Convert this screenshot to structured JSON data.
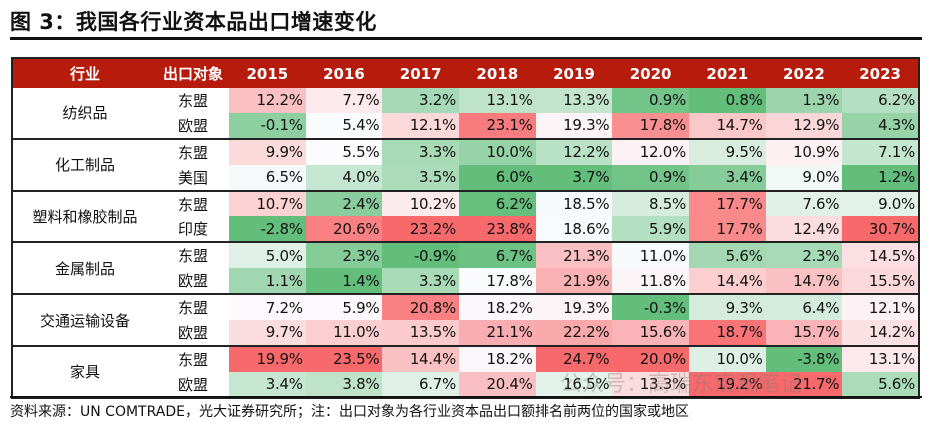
{
  "title": "图 3：我国各行业资本品出口增速变化",
  "table": {
    "headers": [
      "行业",
      "出口对象",
      "2015",
      "2016",
      "2017",
      "2018",
      "2019",
      "2020",
      "2021",
      "2022",
      "2023"
    ],
    "groups": [
      {
        "industry": "纺织品",
        "rows": [
          {
            "target": "东盟",
            "values": [
              "12.2%",
              "7.7%",
              "3.2%",
              "13.1%",
              "13.3%",
              "0.9%",
              "0.8%",
              "1.3%",
              "6.2%"
            ]
          },
          {
            "target": "欧盟",
            "values": [
              "-0.1%",
              "5.4%",
              "12.1%",
              "23.1%",
              "19.3%",
              "17.8%",
              "14.7%",
              "12.9%",
              "4.3%"
            ]
          }
        ]
      },
      {
        "industry": "化工制品",
        "rows": [
          {
            "target": "东盟",
            "values": [
              "9.9%",
              "5.5%",
              "3.3%",
              "10.0%",
              "12.2%",
              "12.0%",
              "9.5%",
              "10.9%",
              "7.1%"
            ]
          },
          {
            "target": "美国",
            "values": [
              "6.5%",
              "4.0%",
              "3.5%",
              "6.0%",
              "3.7%",
              "0.9%",
              "3.4%",
              "9.0%",
              "1.2%"
            ]
          }
        ]
      },
      {
        "industry": "塑料和橡胶制品",
        "rows": [
          {
            "target": "东盟",
            "values": [
              "10.7%",
              "2.4%",
              "10.2%",
              "6.2%",
              "18.5%",
              "8.5%",
              "17.7%",
              "7.6%",
              "9.0%"
            ]
          },
          {
            "target": "印度",
            "values": [
              "-2.8%",
              "20.6%",
              "23.2%",
              "23.8%",
              "18.6%",
              "5.9%",
              "17.7%",
              "12.4%",
              "30.7%"
            ]
          }
        ]
      },
      {
        "industry": "金属制品",
        "rows": [
          {
            "target": "东盟",
            "values": [
              "5.0%",
              "2.3%",
              "-0.9%",
              "6.7%",
              "21.3%",
              "11.0%",
              "5.6%",
              "2.3%",
              "14.5%"
            ]
          },
          {
            "target": "欧盟",
            "values": [
              "1.1%",
              "1.4%",
              "3.3%",
              "17.8%",
              "21.9%",
              "11.8%",
              "14.4%",
              "14.7%",
              "15.5%"
            ]
          }
        ]
      },
      {
        "industry": "交通运输设备",
        "rows": [
          {
            "target": "东盟",
            "values": [
              "7.2%",
              "5.9%",
              "20.8%",
              "18.2%",
              "19.3%",
              "-0.3%",
              "9.3%",
              "6.4%",
              "12.1%"
            ]
          },
          {
            "target": "欧盟",
            "values": [
              "9.7%",
              "11.0%",
              "13.5%",
              "21.1%",
              "22.2%",
              "15.6%",
              "18.7%",
              "15.7%",
              "14.2%"
            ]
          }
        ]
      },
      {
        "industry": "家具",
        "rows": [
          {
            "target": "东盟",
            "values": [
              "19.9%",
              "23.5%",
              "14.4%",
              "18.2%",
              "24.7%",
              "20.0%",
              "10.0%",
              "-3.8%",
              "13.1%"
            ]
          },
          {
            "target": "欧盟",
            "values": [
              "3.4%",
              "3.8%",
              "6.7%",
              "20.4%",
              "16.5%",
              "13.3%",
              "19.2%",
              "21.7%",
              "5.6%"
            ]
          }
        ]
      }
    ],
    "colors": {
      "header_bg": "#B71B0C",
      "low": "#63BE7B",
      "mid": "#FCFCFF",
      "high": "#F8696B"
    }
  },
  "source": "资料来源：UN COMTRADE，光大证券研究所；注：出口对象为各行业资本品出口额排名前两位的国家或地区",
  "watermark": "公众号：高瑞东宏观笔记"
}
